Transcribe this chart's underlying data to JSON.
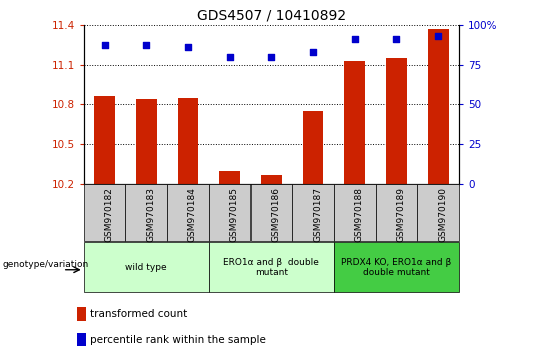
{
  "title": "GDS4507 / 10410892",
  "samples": [
    "GSM970182",
    "GSM970183",
    "GSM970184",
    "GSM970185",
    "GSM970186",
    "GSM970187",
    "GSM970188",
    "GSM970189",
    "GSM970190"
  ],
  "transformed_count": [
    10.86,
    10.84,
    10.85,
    10.3,
    10.27,
    10.75,
    11.13,
    11.15,
    11.37
  ],
  "percentile_rank": [
    87,
    87,
    86,
    80,
    80,
    83,
    91,
    91,
    93
  ],
  "ylim_left": [
    10.2,
    11.4
  ],
  "ylim_right": [
    0,
    100
  ],
  "yticks_left": [
    10.2,
    10.5,
    10.8,
    11.1,
    11.4
  ],
  "yticks_right": [
    0,
    25,
    50,
    75,
    100
  ],
  "bar_color": "#cc2200",
  "scatter_color": "#0000cc",
  "group_ranges": [
    [
      0,
      2
    ],
    [
      3,
      5
    ],
    [
      6,
      8
    ]
  ],
  "group_colors": [
    "#ccffcc",
    "#ccffcc",
    "#44cc44"
  ],
  "group_labels": [
    "wild type",
    "ERO1α and β  double\nmutant",
    "PRDX4 KO, ERO1α and β\ndouble mutant"
  ],
  "genotype_label": "genotype/variation",
  "legend_bar": "transformed count",
  "legend_scatter": "percentile rank within the sample",
  "bg_color": "#ffffff",
  "plot_bg_color": "#ffffff",
  "tick_label_color_left": "#cc2200",
  "tick_label_color_right": "#0000cc",
  "sample_box_color": "#cccccc",
  "bar_width": 0.5
}
